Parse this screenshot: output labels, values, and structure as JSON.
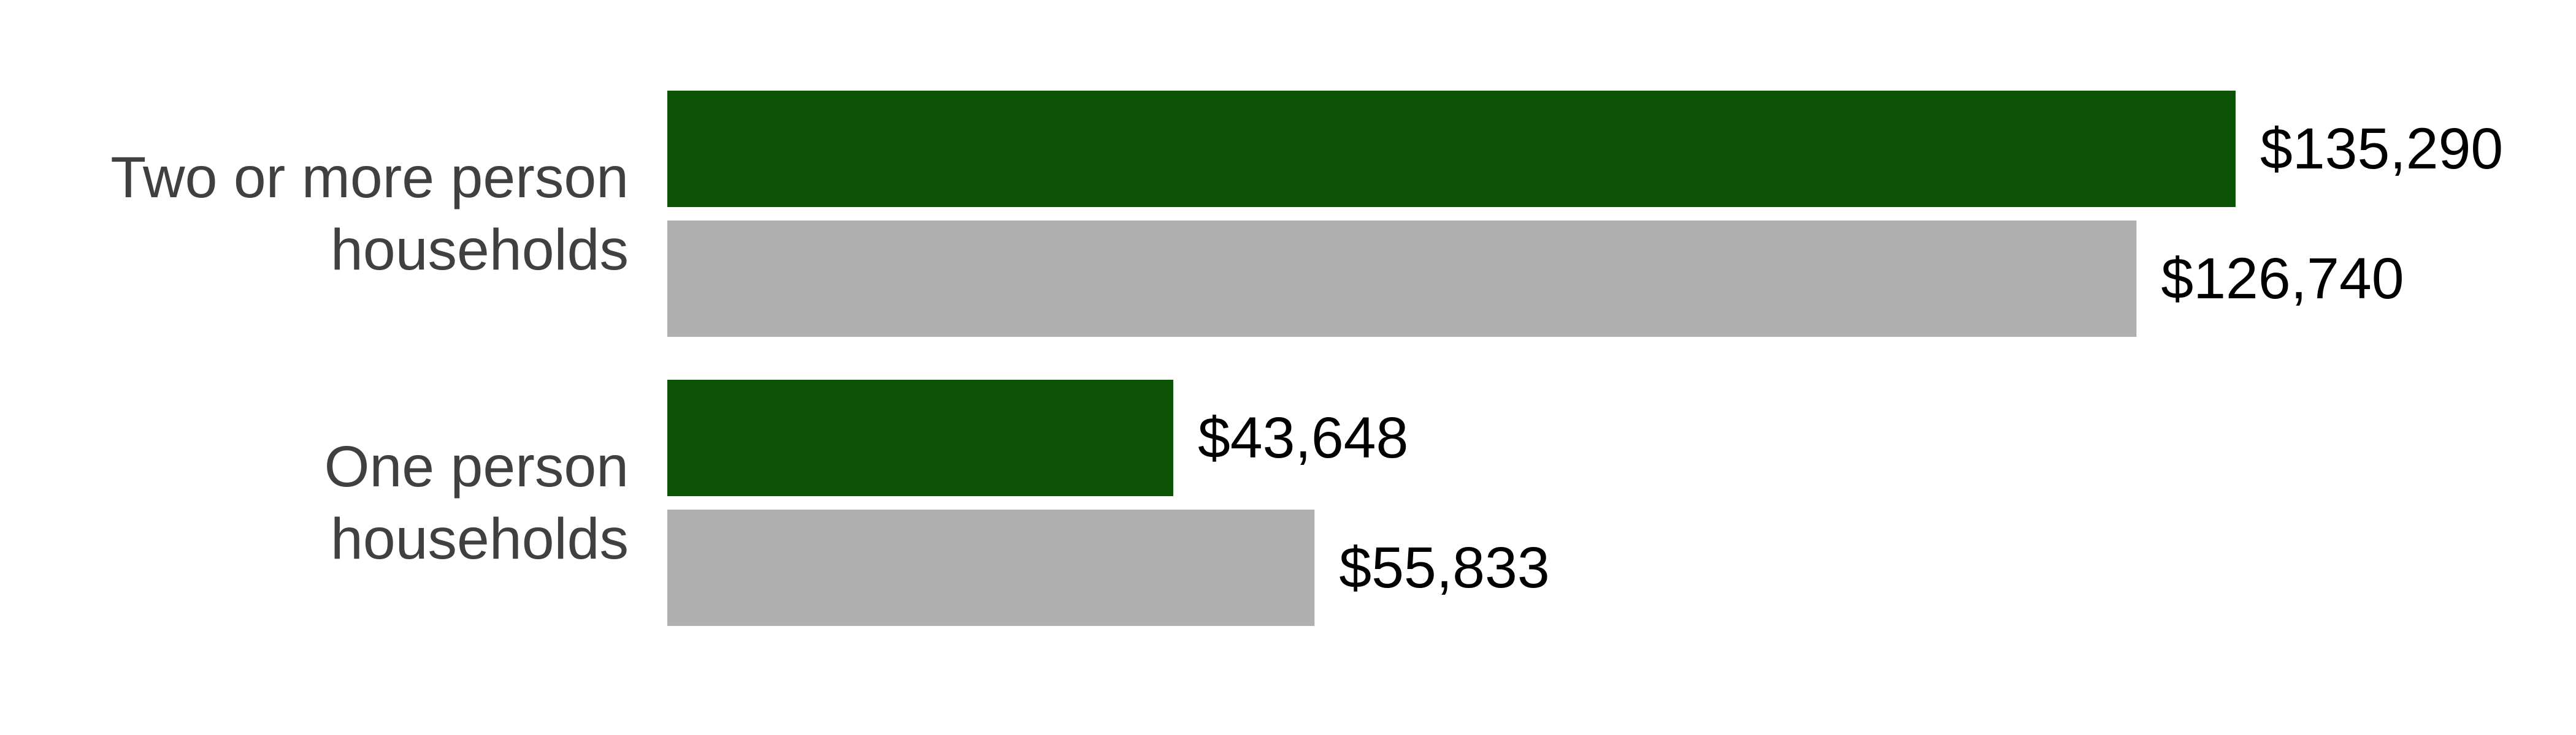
{
  "chart_data": {
    "type": "bar",
    "orientation": "horizontal",
    "categories": [
      [
        "Two or more person",
        "households"
      ],
      [
        "One person",
        "households"
      ]
    ],
    "series": [
      {
        "color": "#0d5306",
        "values": [
          135290,
          43648
        ],
        "labels": [
          "$135,290",
          "$43,648"
        ]
      },
      {
        "color": "#b0b0b0",
        "values": [
          126740,
          55833
        ],
        "labels": [
          "$126,740",
          "$55,833"
        ]
      }
    ],
    "xlim": [
      0,
      135290
    ],
    "grid": false,
    "legend": "none"
  }
}
